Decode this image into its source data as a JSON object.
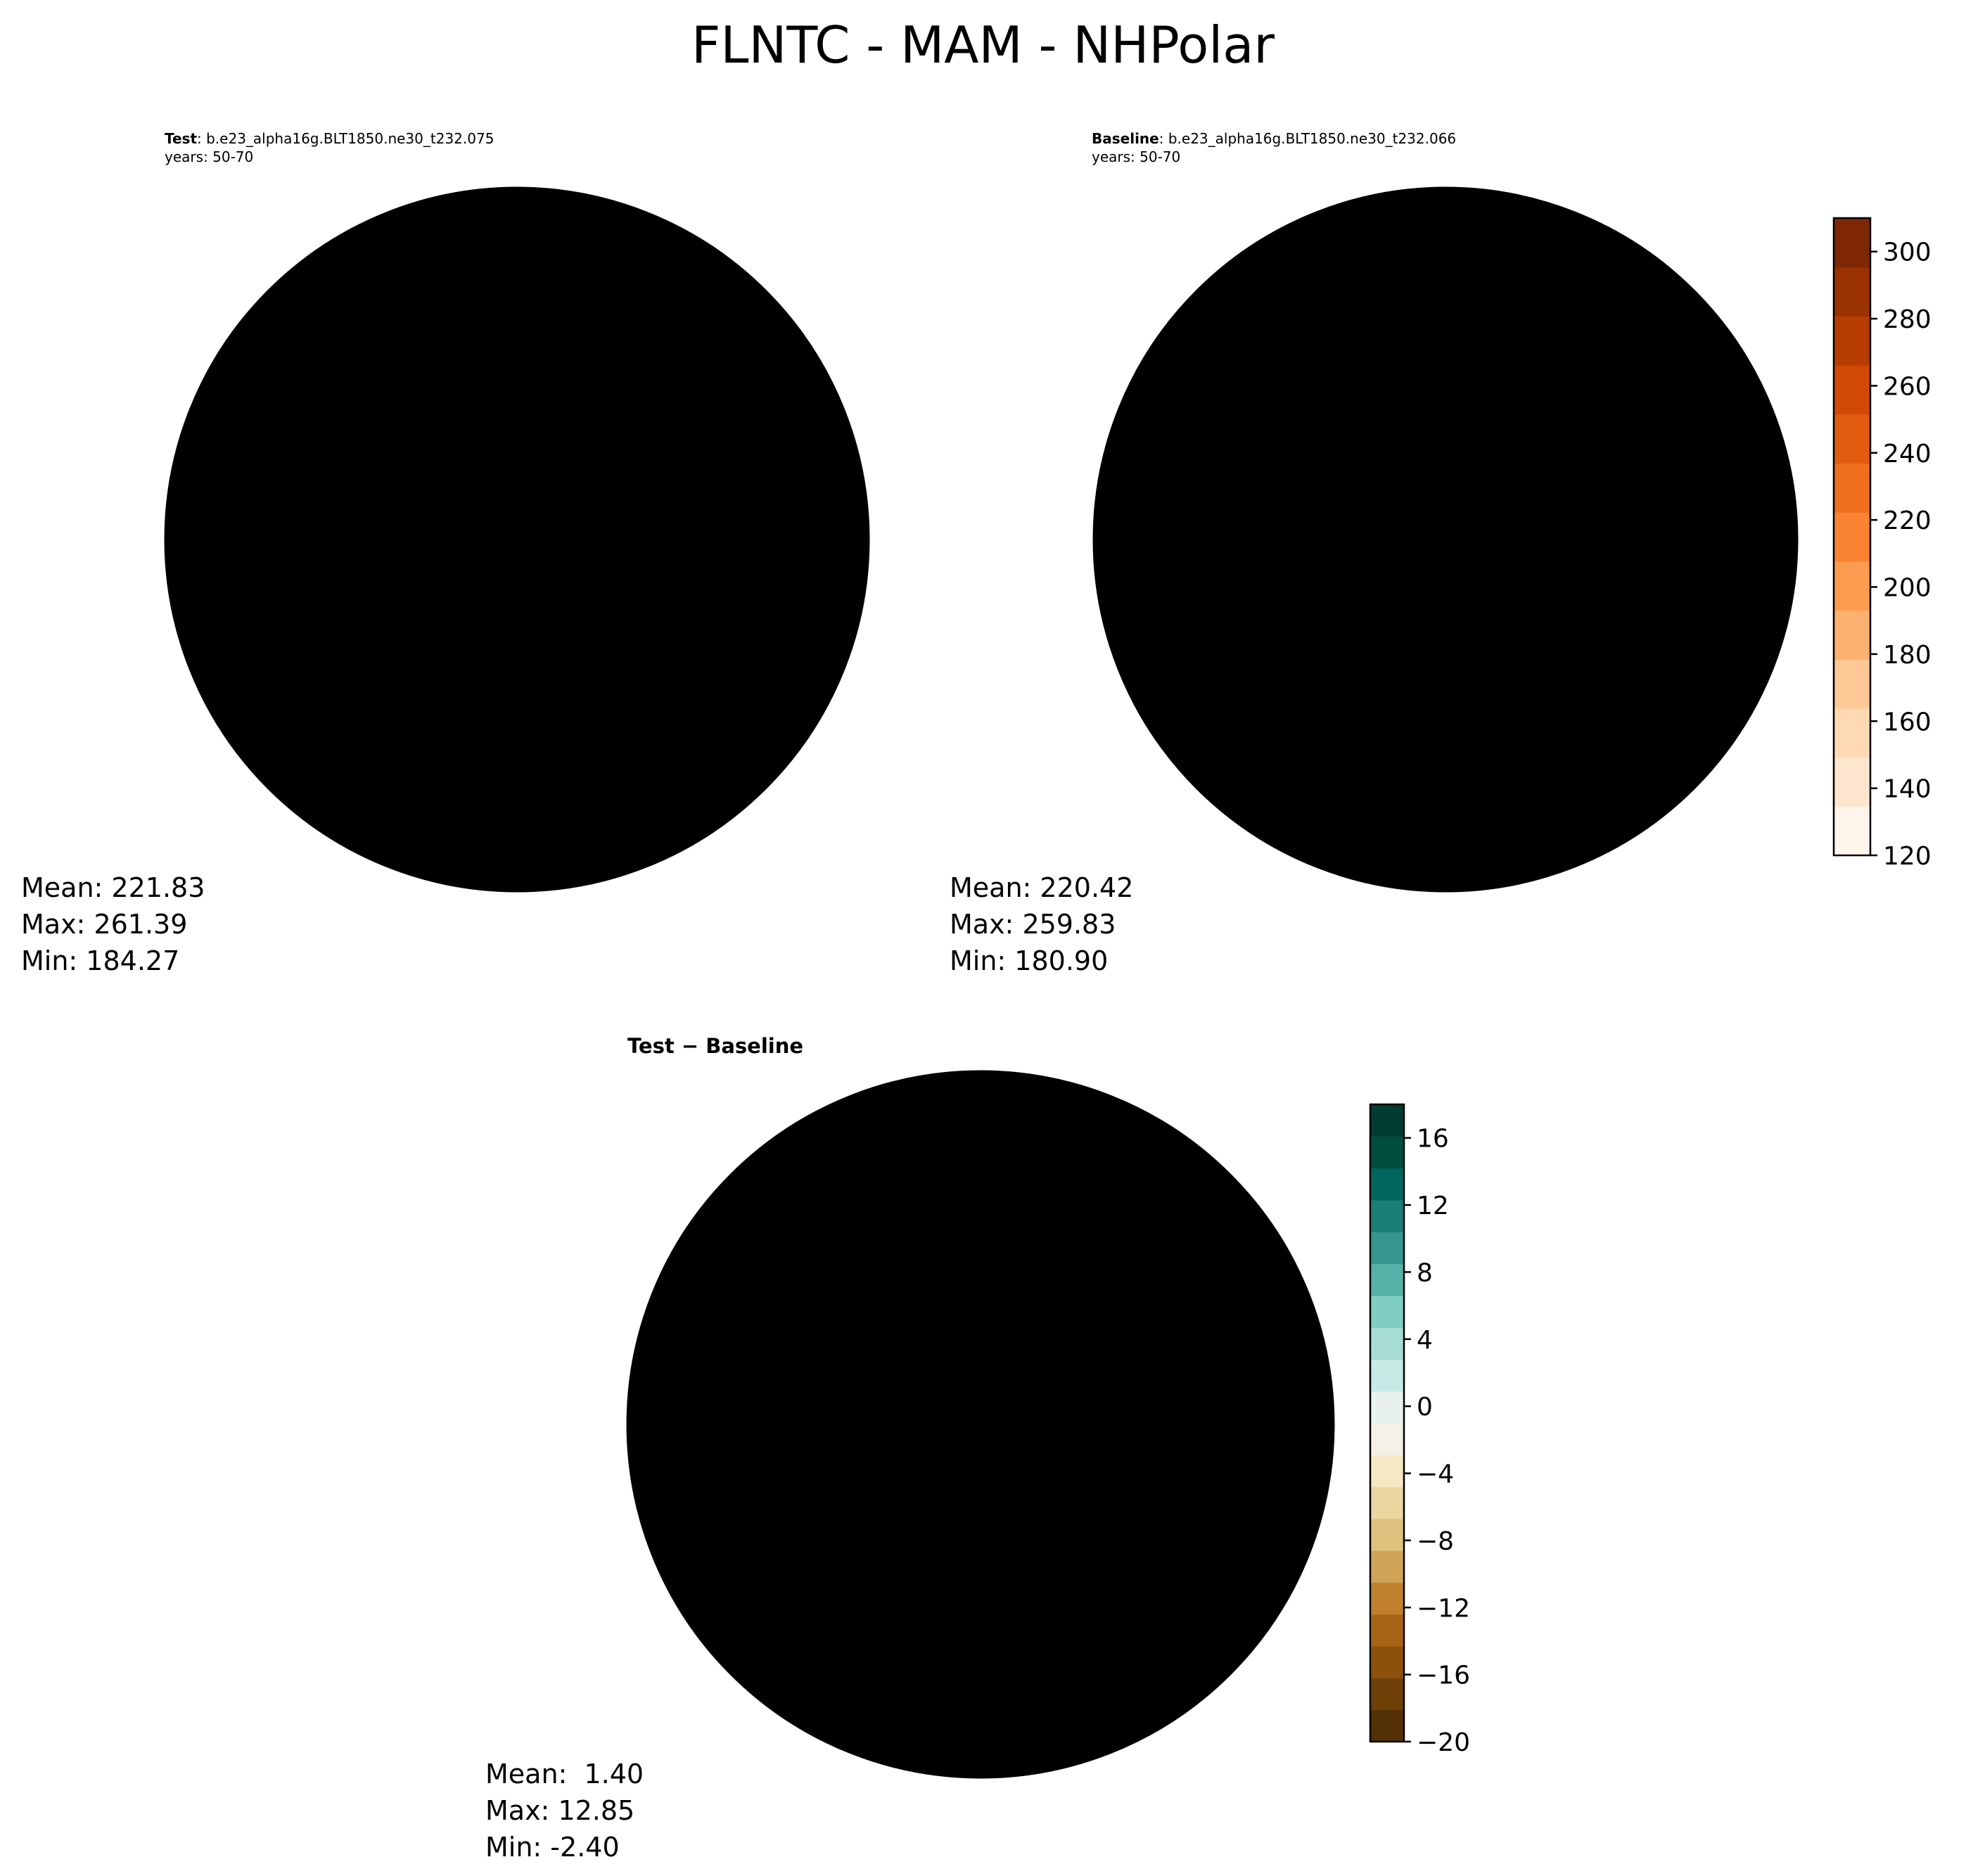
{
  "title": "FLNTC - MAM - NHPolar",
  "panels": {
    "test": {
      "label": "Test",
      "case": ": b.e23_alpha16g.BLT1850.ne30_t232.075",
      "years": "years: 50-70",
      "mean": "Mean: 221.83",
      "max": "Max: 261.39",
      "min": "Min: 184.27"
    },
    "baseline": {
      "label": "Baseline",
      "case": ": b.e23_alpha16g.BLT1850.ne30_t232.066",
      "years": "years: 50-70",
      "mean": "Mean: 220.42",
      "max": "Max: 259.83",
      "min": "Min: 180.90"
    },
    "diff": {
      "label": "Test − Baseline",
      "mean": "Mean:  1.40",
      "max": "Max: 12.85",
      "min": "Min: -2.40"
    }
  },
  "colorbars": {
    "main": {
      "ticks": [
        "120",
        "140",
        "160",
        "180",
        "200",
        "220",
        "240",
        "260",
        "280",
        "300"
      ],
      "tick_values": [
        120,
        140,
        160,
        180,
        200,
        220,
        240,
        260,
        280,
        300
      ],
      "range": [
        120,
        310
      ],
      "colors": [
        "#fff5eb",
        "#fee6ce",
        "#fdd9b4",
        "#fdc895",
        "#fdb170",
        "#fd9b50",
        "#fa8331",
        "#f06f1e",
        "#e25c10",
        "#d14a05",
        "#b83d02",
        "#9b3202",
        "#7f2704"
      ]
    },
    "diff": {
      "ticks": [
        "−20",
        "−16",
        "−12",
        "−8",
        "−4",
        "0",
        "4",
        "8",
        "12",
        "16"
      ],
      "tick_values": [
        -20,
        -16,
        -12,
        -8,
        -4,
        0,
        4,
        8,
        12,
        16
      ],
      "range": [
        -20,
        18
      ],
      "colors": [
        "#543005",
        "#6f3f08",
        "#8c510a",
        "#a86416",
        "#bf812d",
        "#d0a457",
        "#dfc27d",
        "#ebd69f",
        "#f6e8c3",
        "#f5f1e6",
        "#e8f1ef",
        "#c7eae5",
        "#a7dcd3",
        "#80cdc1",
        "#56b1a6",
        "#35978f",
        "#1b7f76",
        "#01665e",
        "#004d40",
        "#003c30"
      ]
    }
  }
}
